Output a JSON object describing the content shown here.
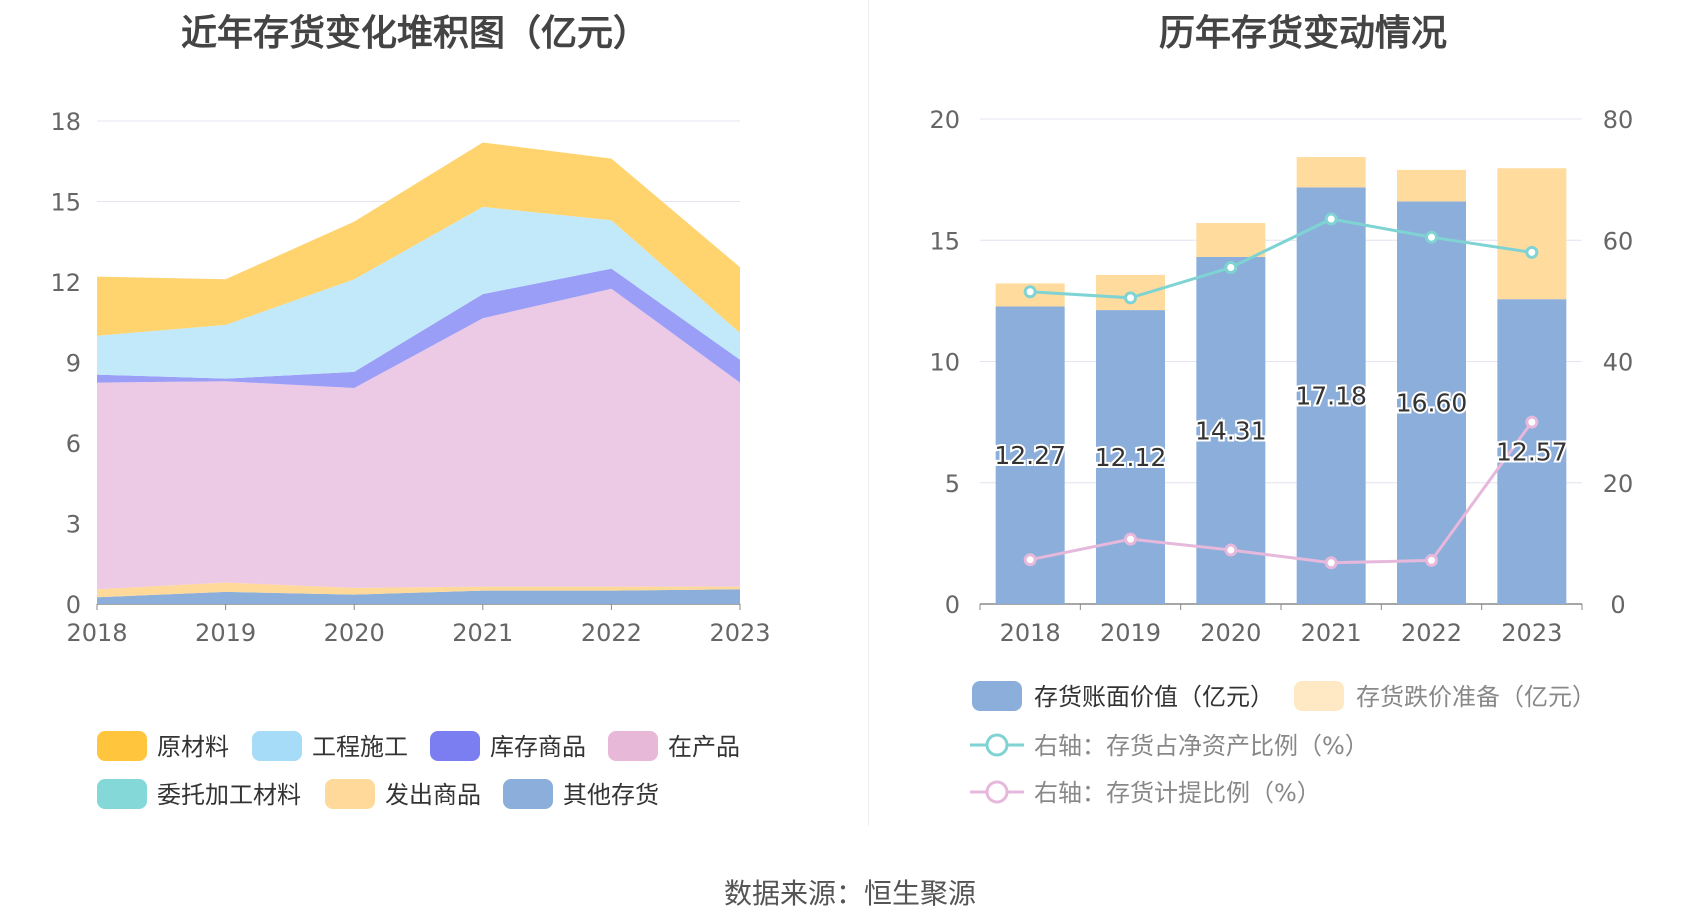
{
  "left_chart_title": "近年存货变化堆积图（亿元）",
  "right_chart_title": "历年存货变动情况",
  "source_text": "数据来源：恒生聚源",
  "chart_data": [
    {
      "type": "area",
      "stacked": true,
      "title": "近年存货变化堆积图（亿元）",
      "categories": [
        "2018",
        "2019",
        "2020",
        "2021",
        "2022",
        "2023"
      ],
      "ylim": [
        0,
        18
      ],
      "yticks": [
        0,
        3,
        6,
        9,
        12,
        15,
        18
      ],
      "grid": true,
      "legend_position": "bottom",
      "series": [
        {
          "name": "其他存货",
          "color": "#8caedb",
          "values": [
            0.25,
            0.45,
            0.35,
            0.5,
            0.5,
            0.55
          ]
        },
        {
          "name": "发出商品",
          "color": "#ffd99a",
          "values": [
            0.3,
            0.35,
            0.25,
            0.15,
            0.15,
            0.1
          ]
        },
        {
          "name": "委托加工材料",
          "color": "#85d8d8",
          "values": [
            0.0,
            0.0,
            0.0,
            0.0,
            0.0,
            0.0
          ]
        },
        {
          "name": "在产品",
          "color": "#ecc9e4",
          "values": [
            7.7,
            7.5,
            7.45,
            10.0,
            11.1,
            7.6
          ]
        },
        {
          "name": "库存商品",
          "color": "#9a9ef7",
          "values": [
            0.3,
            0.1,
            0.6,
            0.9,
            0.75,
            0.85
          ]
        },
        {
          "name": "工程施工",
          "color": "#c2e9fa",
          "values": [
            1.45,
            2.0,
            3.45,
            3.25,
            1.8,
            1.0
          ]
        },
        {
          "name": "原材料",
          "color": "#ffd36e",
          "values": [
            2.2,
            1.7,
            2.15,
            2.4,
            2.3,
            2.45
          ]
        }
      ],
      "legend": [
        {
          "name": "原材料",
          "color": "#ffc53d"
        },
        {
          "name": "工程施工",
          "color": "#a6dcf7"
        },
        {
          "name": "库存商品",
          "color": "#7a7ef0"
        },
        {
          "name": "在产品",
          "color": "#e8b8d8"
        },
        {
          "name": "委托加工材料",
          "color": "#85d8d8"
        },
        {
          "name": "发出商品",
          "color": "#ffd99a"
        },
        {
          "name": "其他存货",
          "color": "#8caedb"
        }
      ]
    },
    {
      "type": "bar",
      "stacked": true,
      "title": "历年存货变动情况",
      "categories": [
        "2018",
        "2019",
        "2020",
        "2021",
        "2022",
        "2023"
      ],
      "ylim": [
        0,
        20
      ],
      "yticks": [
        0,
        5,
        10,
        15,
        20
      ],
      "y2lim": [
        0,
        80
      ],
      "y2ticks": [
        0,
        20,
        40,
        60,
        80
      ],
      "grid": true,
      "legend_position": "bottom",
      "series": [
        {
          "name": "存货账面价值（亿元）",
          "kind": "bar",
          "axis": "left",
          "color": "#8caedb",
          "values": [
            12.27,
            12.12,
            14.31,
            17.18,
            16.6,
            12.57
          ],
          "labels": [
            "12.27",
            "12.12",
            "14.31",
            "17.18",
            "16.60",
            "12.57"
          ]
        },
        {
          "name": "存货跌价准备（亿元）",
          "kind": "bar",
          "axis": "left",
          "color": "#ffdb9e",
          "values": [
            0.95,
            1.45,
            1.4,
            1.25,
            1.3,
            5.4
          ]
        },
        {
          "name": "右轴：存货占净资产比例（%）",
          "kind": "line",
          "axis": "right",
          "color": "#7fd3d3",
          "values": [
            51.5,
            50.5,
            55.5,
            63.5,
            60.5,
            58.0
          ]
        },
        {
          "name": "右轴：存货计提比例（%）",
          "kind": "line",
          "axis": "right",
          "color": "#e6b8db",
          "values": [
            7.3,
            10.7,
            8.9,
            6.8,
            7.2,
            30.0
          ]
        }
      ]
    }
  ]
}
